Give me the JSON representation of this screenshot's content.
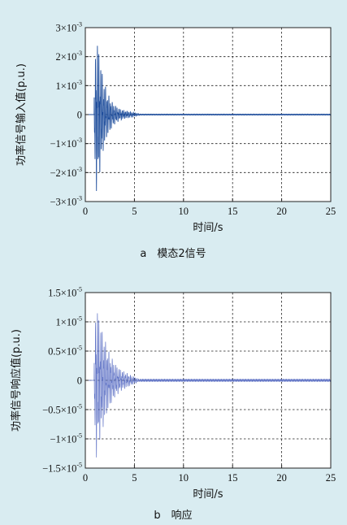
{
  "chart_data": [
    {
      "type": "line",
      "xlabel": "时间/s",
      "ylabel": "功率信号输入值(p.u.)",
      "caption": "a　模态2信号",
      "xlim": [
        0,
        25
      ],
      "ylim": [
        -0.003,
        0.003
      ],
      "x_ticks": [
        "0",
        "5",
        "10",
        "15",
        "20",
        "25"
      ],
      "y_ticks": [
        {
          "value": 0.003,
          "base": "3×10",
          "exp": "-3"
        },
        {
          "value": 0.002,
          "base": "2×10",
          "exp": "-3"
        },
        {
          "value": 0.001,
          "base": "1×10",
          "exp": "-3"
        },
        {
          "value": 0,
          "base": "0",
          "exp": ""
        },
        {
          "value": -0.001,
          "base": "−1×10",
          "exp": "-3"
        },
        {
          "value": -0.002,
          "base": "−2×10",
          "exp": "-3"
        },
        {
          "value": -0.003,
          "base": "−3×10",
          "exp": "-3"
        }
      ],
      "grid": true,
      "series": [
        {
          "color": "#1f4e9c",
          "envelope": {
            "t_start": 0.9,
            "t_peak": 1.15,
            "peak": 0.0027,
            "decay_end": 5.5,
            "residual": 3e-05
          },
          "x": [
            0.9,
            1.0,
            1.15,
            1.3,
            1.5,
            1.8,
            2.2,
            2.8,
            3.5,
            4.5,
            5.5
          ],
          "y_envelope": [
            0.0008,
            0.0022,
            0.0027,
            0.0025,
            0.002,
            0.0013,
            0.0008,
            0.0004,
            0.0002,
            0.0001,
            3e-05
          ]
        }
      ]
    },
    {
      "type": "line",
      "xlabel": "时间/s",
      "ylabel": "功率信号响应值(p.u.)",
      "caption": "b　响应",
      "xlim": [
        0,
        25
      ],
      "ylim": [
        -1.5e-05,
        1.5e-05
      ],
      "x_ticks": [
        "0",
        "5",
        "10",
        "15",
        "20",
        "25"
      ],
      "y_ticks": [
        {
          "value": 1.5e-05,
          "base": "1.5×10",
          "exp": "-5"
        },
        {
          "value": 1e-05,
          "base": "1×10",
          "exp": "-5"
        },
        {
          "value": 5e-06,
          "base": "0.5×10",
          "exp": "-5"
        },
        {
          "value": 0,
          "base": "0",
          "exp": ""
        },
        {
          "value": -5e-06,
          "base": "−0.5×10",
          "exp": "-5"
        },
        {
          "value": -1e-05,
          "base": "−1×10",
          "exp": "-5"
        },
        {
          "value": -1.5e-05,
          "base": "−1.5×10",
          "exp": "-5"
        }
      ],
      "grid": true,
      "series": [
        {
          "color": "#5b6fc4",
          "envelope": {
            "t_start": 0.9,
            "t_peak": 1.1,
            "peak": 1.35e-05,
            "decay_end": 5.5,
            "residual": 2e-07
          },
          "x": [
            0.9,
            1.0,
            1.1,
            1.3,
            1.6,
            2.0,
            2.5,
            3.0,
            3.5,
            4.5,
            5.5
          ],
          "y_envelope": [
            4e-06,
            1.1e-05,
            1.35e-05,
            1.2e-05,
            9.5e-06,
            7e-06,
            4.5e-06,
            3e-06,
            2e-06,
            1e-06,
            2e-07
          ]
        }
      ]
    }
  ]
}
